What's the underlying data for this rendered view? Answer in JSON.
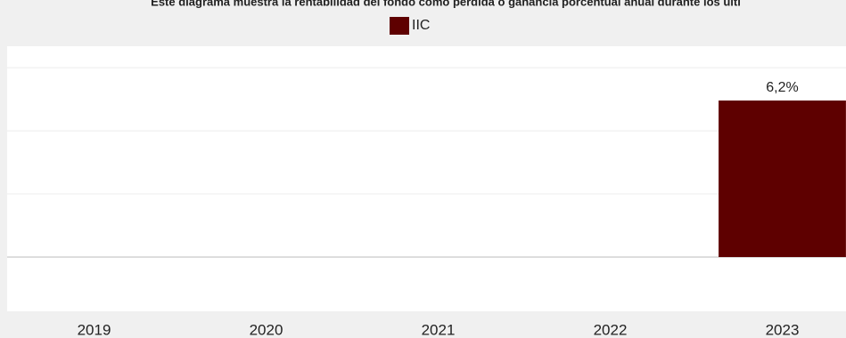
{
  "chart_data": {
    "type": "bar",
    "title": "Este diagrama muestra la rentabilidad del fondo como pérdida o ganancia porcentual anual durante los últi",
    "categories": [
      "2019",
      "2020",
      "2021",
      "2022",
      "2023"
    ],
    "series": [
      {
        "name": "IIC",
        "color": "#5e0000",
        "values": [
          null,
          null,
          null,
          null,
          6.2
        ],
        "value_labels": [
          null,
          null,
          null,
          null,
          "6,2%"
        ]
      }
    ],
    "ylim": [
      -2.15,
      8.35
    ],
    "yticks": [
      0,
      2.5,
      5,
      7.5
    ],
    "grid": true
  }
}
